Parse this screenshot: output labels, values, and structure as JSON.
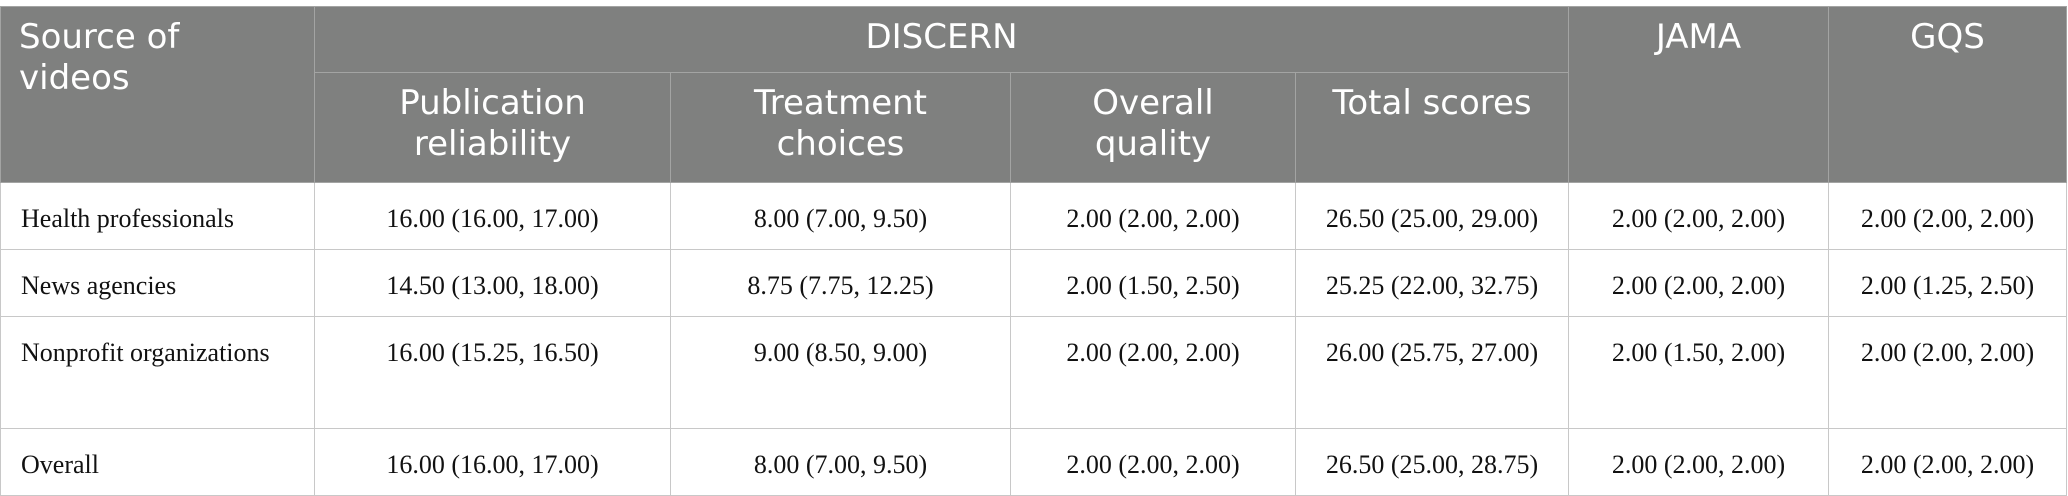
{
  "table": {
    "header": {
      "source": "Source of videos",
      "group": "DISCERN",
      "jama": "JAMA",
      "gqs": "GQS",
      "sub": [
        "Publication reliability",
        "Treatment choices",
        "Overall quality",
        "Total scores"
      ]
    },
    "rows": [
      [
        "Health professionals",
        "16.00 (16.00, 17.00)",
        "8.00 (7.00, 9.50)",
        "2.00 (2.00, 2.00)",
        "26.50 (25.00, 29.00)",
        "2.00 (2.00, 2.00)",
        "2.00 (2.00, 2.00)"
      ],
      [
        "News agencies",
        "14.50 (13.00, 18.00)",
        "8.75 (7.75, 12.25)",
        "2.00 (1.50, 2.50)",
        "25.25 (22.00, 32.75)",
        "2.00 (2.00, 2.00)",
        "2.00 (1.25, 2.50)"
      ],
      [
        "Nonprofit organizations",
        "16.00 (15.25, 16.50)",
        "9.00 (8.50, 9.00)",
        "2.00 (2.00, 2.00)",
        "26.00 (25.75, 27.00)",
        "2.00 (1.50, 2.00)",
        "2.00 (2.00, 2.00)"
      ],
      [
        "Overall",
        "16.00 (16.00, 17.00)",
        "8.00 (7.00, 9.50)",
        "2.00 (2.00, 2.00)",
        "26.50 (25.00, 28.75)",
        "2.00 (2.00, 2.00)",
        "2.00 (2.00, 2.00)"
      ]
    ]
  }
}
